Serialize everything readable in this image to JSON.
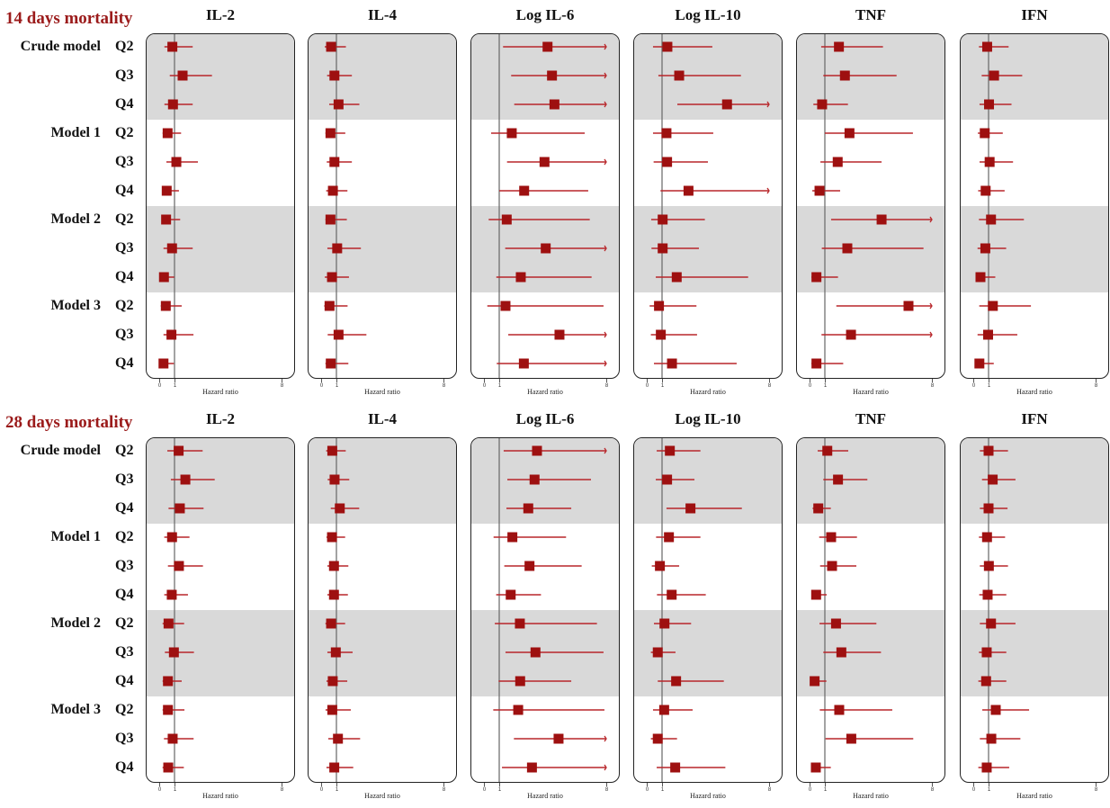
{
  "row_groups": [
    {
      "model": "Crude model",
      "quartiles": [
        "Q2",
        "Q3",
        "Q4"
      ]
    },
    {
      "model": "Model 1",
      "quartiles": [
        "Q2",
        "Q3",
        "Q4"
      ]
    },
    {
      "model": "Model 2",
      "quartiles": [
        "Q2",
        "Q3",
        "Q4"
      ]
    },
    {
      "model": "Model 3",
      "quartiles": [
        "Q2",
        "Q3",
        "Q4"
      ]
    }
  ],
  "colors": {
    "title": "#9b1b1b",
    "marker": "#9e1010",
    "ci_line": "#b8262a",
    "band": "#d9d9d9",
    "ref_line": "#666666"
  },
  "chart_data": [
    {
      "type": "scatter",
      "title": "14 days mortality",
      "xlabel": "Hazard ratio",
      "xlim": [
        0,
        8
      ],
      "ticks": [
        "0",
        "1",
        "8"
      ],
      "reference": 1,
      "panels": [
        {
          "name": "IL-2",
          "rows": [
            [
              0.34,
              0.86,
              2.19
            ],
            [
              0.69,
              1.53,
              3.45
            ],
            [
              0.34,
              0.9,
              2.19
            ],
            [
              0.22,
              0.55,
              1.43
            ],
            [
              0.47,
              1.12,
              2.53
            ],
            [
              0.22,
              0.49,
              1.29
            ],
            [
              0.22,
              0.45,
              1.37
            ],
            [
              0.28,
              0.84,
              2.19
            ],
            [
              0.02,
              0.31,
              0.98
            ],
            [
              0.1,
              0.43,
              1.47
            ],
            [
              0.28,
              0.8,
              2.24
            ],
            [
              0.02,
              0.28,
              0.96
            ]
          ]
        },
        {
          "name": "IL-4",
          "rows": [
            [
              0.24,
              0.65,
              1.62
            ],
            [
              0.39,
              0.87,
              2.01
            ],
            [
              0.53,
              1.14,
              2.5
            ],
            [
              0.28,
              0.61,
              1.58
            ],
            [
              0.37,
              0.87,
              2.01
            ],
            [
              0.33,
              0.77,
              1.72
            ],
            [
              0.28,
              0.61,
              1.68
            ],
            [
              0.41,
              1.05,
              2.6
            ],
            [
              0.24,
              0.71,
              1.82
            ],
            [
              0.2,
              0.55,
              1.73
            ],
            [
              0.43,
              1.14,
              2.96
            ],
            [
              0.28,
              0.63,
              1.78
            ]
          ]
        },
        {
          "name": "Log IL-6",
          "rows": [
            [
              1.25,
              4.16,
              ">8"
            ],
            [
              1.78,
              4.45,
              ">8"
            ],
            [
              1.98,
              4.61,
              ">8"
            ],
            [
              0.47,
              1.82,
              6.59
            ],
            [
              1.51,
              3.96,
              ">8"
            ],
            [
              1.0,
              2.63,
              6.82
            ],
            [
              0.31,
              1.49,
              6.92
            ],
            [
              1.39,
              4.04,
              ">8"
            ],
            [
              0.81,
              2.41,
              7.04
            ],
            [
              0.22,
              1.41,
              7.82
            ],
            [
              1.59,
              4.94,
              ">8"
            ],
            [
              0.84,
              2.61,
              ">8"
            ]
          ]
        },
        {
          "name": "Log IL-10",
          "rows": [
            [
              0.41,
              1.35,
              4.29
            ],
            [
              0.76,
              2.12,
              6.16
            ],
            [
              2.0,
              5.25,
              ">8"
            ],
            [
              0.41,
              1.29,
              4.35
            ],
            [
              0.45,
              1.33,
              4.0
            ],
            [
              0.9,
              2.73,
              ">8"
            ],
            [
              0.29,
              1.04,
              3.8
            ],
            [
              0.31,
              1.04,
              3.41
            ],
            [
              0.59,
              1.96,
              6.63
            ],
            [
              0.19,
              0.8,
              3.25
            ],
            [
              0.27,
              0.92,
              3.29
            ],
            [
              0.47,
              1.65,
              5.88
            ]
          ]
        },
        {
          "name": "TNF",
          "rows": [
            [
              0.76,
              1.92,
              4.8
            ],
            [
              0.9,
              2.31,
              5.69
            ],
            [
              0.25,
              0.82,
              2.51
            ],
            [
              1.0,
              2.61,
              6.76
            ],
            [
              0.71,
              1.84,
              4.71
            ],
            [
              0.18,
              0.65,
              2.0
            ],
            [
              1.41,
              4.71,
              ">8"
            ],
            [
              0.8,
              2.47,
              7.45
            ],
            [
              0.12,
              0.45,
              1.86
            ],
            [
              1.75,
              6.47,
              ">8"
            ],
            [
              0.78,
              2.71,
              ">8"
            ],
            [
              0.12,
              0.45,
              2.2
            ]
          ]
        },
        {
          "name": "IFN",
          "rows": [
            [
              0.37,
              0.91,
              2.31
            ],
            [
              0.55,
              1.36,
              3.2
            ],
            [
              0.41,
              1.03,
              2.5
            ],
            [
              0.3,
              0.75,
              1.93
            ],
            [
              0.41,
              1.07,
              2.6
            ],
            [
              0.32,
              0.81,
              2.05
            ],
            [
              0.37,
              1.16,
              3.31
            ],
            [
              0.28,
              0.79,
              2.15
            ],
            [
              0.2,
              0.47,
              1.44
            ],
            [
              0.39,
              1.28,
              3.77
            ],
            [
              0.28,
              0.97,
              2.88
            ],
            [
              0.16,
              0.4,
              1.34
            ]
          ]
        }
      ]
    },
    {
      "type": "scatter",
      "title": "28 days mortality",
      "xlabel": "Hazard ratio",
      "xlim": [
        0,
        8
      ],
      "ticks": [
        "0",
        "1",
        "8"
      ],
      "reference": 1,
      "panels": [
        {
          "name": "IL-2",
          "rows": [
            [
              0.53,
              1.27,
              2.84
            ],
            [
              0.76,
              1.71,
              3.63
            ],
            [
              0.61,
              1.35,
              2.9
            ],
            [
              0.33,
              0.84,
              1.98
            ],
            [
              0.57,
              1.29,
              2.86
            ],
            [
              0.33,
              0.82,
              1.88
            ],
            [
              0.22,
              0.61,
              1.63
            ],
            [
              0.37,
              0.96,
              2.27
            ],
            [
              0.22,
              0.57,
              1.47
            ],
            [
              0.22,
              0.57,
              1.65
            ],
            [
              0.31,
              0.88,
              2.25
            ],
            [
              0.22,
              0.59,
              1.61
            ]
          ]
        },
        {
          "name": "IL-4",
          "rows": [
            [
              0.33,
              0.73,
              1.61
            ],
            [
              0.43,
              0.88,
              1.84
            ],
            [
              0.63,
              1.22,
              2.49
            ],
            [
              0.35,
              0.71,
              1.57
            ],
            [
              0.41,
              0.84,
              1.78
            ],
            [
              0.41,
              0.84,
              1.75
            ],
            [
              0.28,
              0.65,
              1.57
            ],
            [
              0.41,
              0.96,
              2.06
            ],
            [
              0.35,
              0.76,
              1.71
            ],
            [
              0.29,
              0.73,
              1.94
            ],
            [
              0.47,
              1.1,
              2.55
            ],
            [
              0.35,
              0.86,
              2.1
            ]
          ]
        },
        {
          "name": "Log IL-6",
          "rows": [
            [
              1.29,
              3.47,
              ">8"
            ],
            [
              1.53,
              3.31,
              7.0
            ],
            [
              1.47,
              2.9,
              5.71
            ],
            [
              0.63,
              1.86,
              5.37
            ],
            [
              1.33,
              2.98,
              6.39
            ],
            [
              0.8,
              1.75,
              3.73
            ],
            [
              0.71,
              2.35,
              7.39
            ],
            [
              1.41,
              3.37,
              7.82
            ],
            [
              0.96,
              2.37,
              5.71
            ],
            [
              0.61,
              2.24,
              7.88
            ],
            [
              1.96,
              4.88,
              ">8"
            ],
            [
              1.18,
              3.14,
              ">8"
            ]
          ]
        },
        {
          "name": "Log IL-10",
          "rows": [
            [
              0.65,
              1.51,
              3.51
            ],
            [
              0.59,
              1.33,
              3.12
            ],
            [
              1.29,
              2.86,
              6.22
            ],
            [
              0.61,
              1.45,
              3.51
            ],
            [
              0.33,
              0.86,
              2.12
            ],
            [
              0.67,
              1.63,
              3.86
            ],
            [
              0.47,
              1.16,
              2.9
            ],
            [
              0.27,
              0.72,
              1.88
            ],
            [
              0.72,
              1.92,
              5.04
            ],
            [
              0.41,
              1.14,
              3.0
            ],
            [
              0.27,
              0.72,
              1.98
            ],
            [
              0.65,
              1.86,
              5.14
            ]
          ]
        },
        {
          "name": "TNF",
          "rows": [
            [
              0.53,
              1.16,
              2.53
            ],
            [
              0.9,
              1.86,
              3.78
            ],
            [
              0.2,
              0.57,
              1.39
            ],
            [
              0.63,
              1.41,
              3.1
            ],
            [
              0.69,
              1.47,
              3.06
            ],
            [
              0.16,
              0.43,
              1.12
            ],
            [
              0.65,
              1.73,
              4.37
            ],
            [
              0.9,
              2.08,
              4.67
            ],
            [
              0.06,
              0.33,
              1.1
            ],
            [
              0.67,
              1.94,
              5.41
            ],
            [
              1.04,
              2.73,
              6.78
            ],
            [
              0.16,
              0.41,
              1.39
            ]
          ]
        },
        {
          "name": "IFN",
          "rows": [
            [
              0.43,
              1.0,
              2.27
            ],
            [
              0.57,
              1.27,
              2.76
            ],
            [
              0.43,
              1.0,
              2.24
            ],
            [
              0.37,
              0.9,
              2.08
            ],
            [
              0.43,
              1.02,
              2.27
            ],
            [
              0.39,
              0.94,
              2.16
            ],
            [
              0.43,
              1.16,
              2.76
            ],
            [
              0.37,
              0.88,
              2.16
            ],
            [
              0.33,
              0.84,
              2.16
            ],
            [
              0.59,
              1.47,
              3.65
            ],
            [
              0.43,
              1.18,
              3.08
            ],
            [
              0.33,
              0.88,
              2.35
            ]
          ]
        }
      ]
    }
  ]
}
